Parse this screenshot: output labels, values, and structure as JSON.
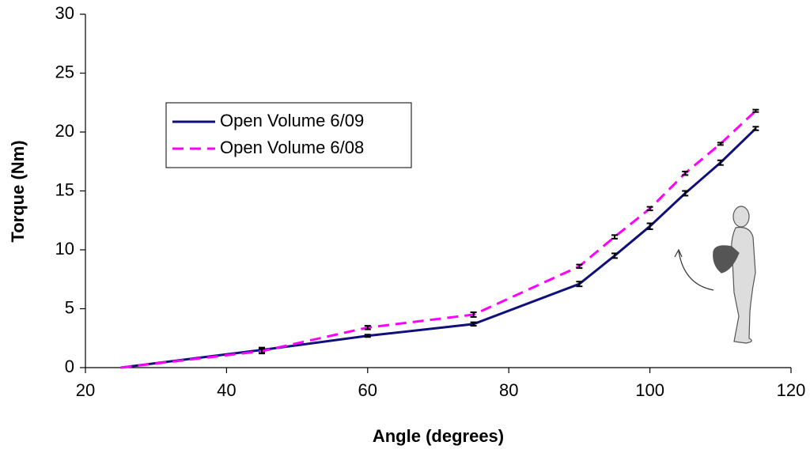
{
  "chart_data": {
    "type": "line",
    "x_label": "Angle (degrees)",
    "y_label": "Torque (Nm)",
    "x": [
      25,
      45,
      60,
      75,
      90,
      95,
      100,
      105,
      110,
      115
    ],
    "series": [
      {
        "name": "Open Volume 6/09",
        "color": "#10107a",
        "line_style": "solid",
        "values": [
          0,
          1.5,
          2.7,
          3.7,
          7.1,
          9.5,
          12.0,
          14.8,
          17.4,
          20.3
        ],
        "errors": [
          null,
          0.2,
          0.1,
          0.15,
          0.2,
          0.2,
          0.25,
          0.2,
          0.2,
          0.15
        ]
      },
      {
        "name": "Open Volume 6/08",
        "color": "#ff00ff",
        "line_style": "dashed",
        "values": [
          0,
          1.4,
          3.4,
          4.5,
          8.6,
          11.1,
          13.5,
          16.5,
          19.0,
          21.8
        ],
        "errors": [
          null,
          0.2,
          0.15,
          0.2,
          0.15,
          0.15,
          0.15,
          0.15,
          0.1,
          0.1
        ]
      }
    ],
    "xlim": [
      20,
      120
    ],
    "xticks": [
      20,
      40,
      60,
      80,
      100,
      120
    ],
    "ylim": [
      0,
      30
    ],
    "yticks": [
      0,
      5,
      10,
      15,
      20,
      25,
      30
    ],
    "grid": false,
    "legend_position": "center left"
  }
}
